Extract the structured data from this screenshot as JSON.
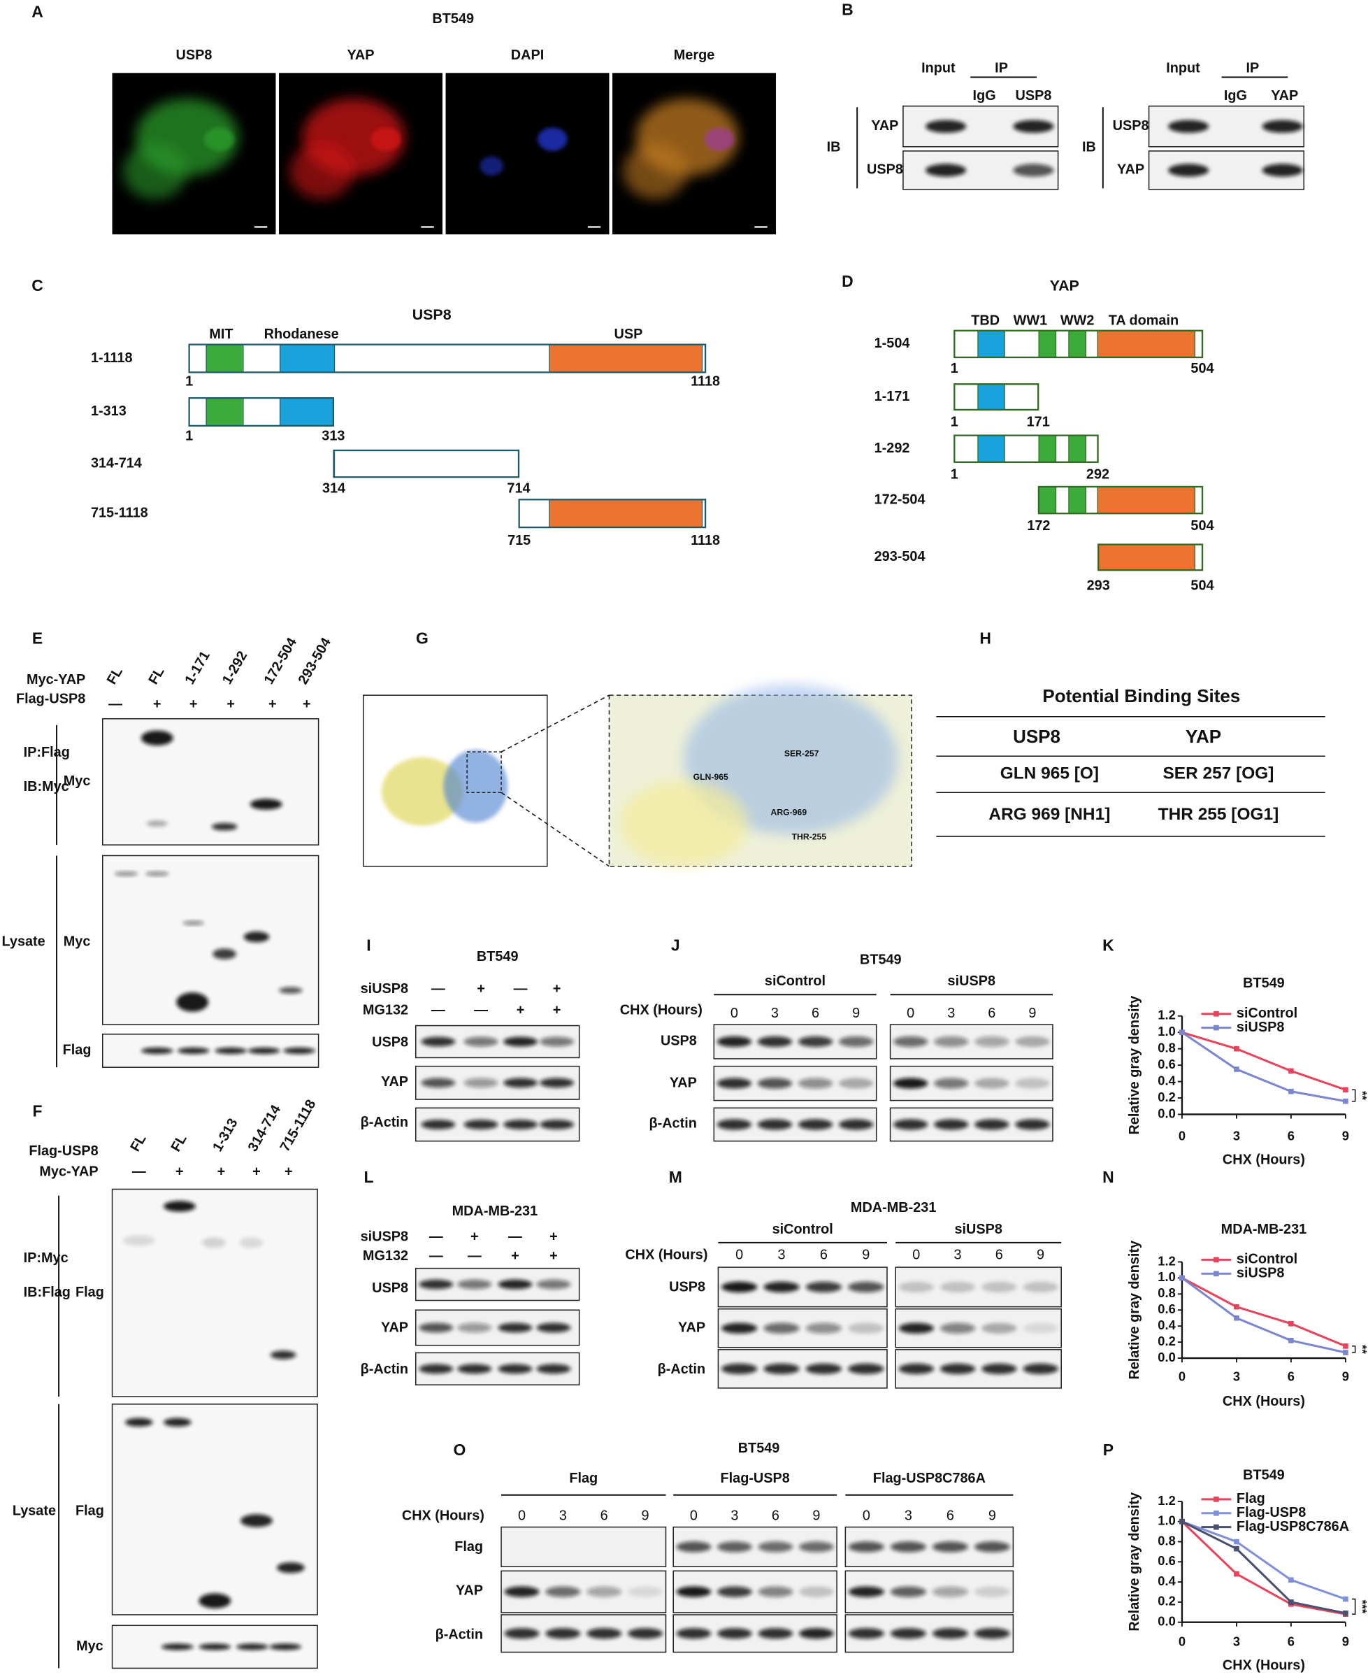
{
  "panels": {
    "A": {
      "letter": "A",
      "cell": "BT549",
      "channels": [
        "USP8",
        "YAP",
        "DAPI",
        "Merge"
      ]
    },
    "B": {
      "letter": "B",
      "blots": [
        {
          "input": "Input",
          "ip": "IP",
          "lanes": [
            "IgG",
            "USP8"
          ],
          "ib": "IB",
          "rows": [
            "YAP",
            "USP8"
          ]
        },
        {
          "input": "Input",
          "ip": "IP",
          "lanes": [
            "IgG",
            "YAP"
          ],
          "ib": "IB",
          "rows": [
            "USP8",
            "YAP"
          ]
        }
      ]
    },
    "C": {
      "letter": "C",
      "title": "USP8",
      "domains": [
        "MIT",
        "Rhodanese",
        "USP"
      ],
      "constructs": [
        {
          "label": "1-1118",
          "start": 1,
          "end": 1118
        },
        {
          "label": "1-313",
          "start": 1,
          "end": 313
        },
        {
          "label": "314-714",
          "start": 314,
          "end": 714
        },
        {
          "label": "715-1118",
          "start": 715,
          "end": 1118
        }
      ]
    },
    "D": {
      "letter": "D",
      "title": "YAP",
      "domains": [
        "TBD",
        "WW1",
        "WW2",
        "TA domain"
      ],
      "constructs": [
        {
          "label": "1-504",
          "start": 1,
          "end": 504
        },
        {
          "label": "1-171",
          "start": 1,
          "end": 171
        },
        {
          "label": "1-292",
          "start": 1,
          "end": 292
        },
        {
          "label": "172-504",
          "start": 172,
          "end": 504
        },
        {
          "label": "293-504",
          "start": 293,
          "end": 504
        }
      ]
    },
    "E": {
      "letter": "E",
      "row1": "Myc-YAP",
      "row2": "Flag-USP8",
      "lanes": [
        "FL",
        "FL",
        "1-171",
        "1-292",
        "172-504",
        "293-504"
      ],
      "signs": [
        "—",
        "+",
        "+",
        "+",
        "+",
        "+"
      ],
      "ip": "IP:Flag",
      "ib": "IB:Myc",
      "ip_blot": "Myc",
      "lysate": "Lysate",
      "lysate_blots": [
        "Myc",
        "Flag"
      ]
    },
    "F": {
      "letter": "F",
      "row1": "Flag-USP8",
      "row2": "Myc-YAP",
      "lanes": [
        "FL",
        "FL",
        "1-313",
        "314-714",
        "715-1118"
      ],
      "signs": [
        "—",
        "+",
        "+",
        "+",
        "+"
      ],
      "ip": "IP:Myc",
      "ib": "IB:Flag",
      "ip_blot": "Flag",
      "lysate": "Lysate",
      "lysate_blots": [
        "Flag",
        "Myc"
      ]
    },
    "G": {
      "letter": "G",
      "residues": [
        "GLN-965",
        "SER-257",
        "ARG-969",
        "THR-255"
      ]
    },
    "H": {
      "letter": "H",
      "title": "Potential Binding Sites",
      "header": [
        "USP8",
        "YAP"
      ],
      "rows": [
        [
          "GLN 965 [O]",
          "SER 257 [OG]"
        ],
        [
          "ARG 969 [NH1]",
          "THR 255 [OG1]"
        ]
      ]
    },
    "I": {
      "letter": "I",
      "cell": "BT549",
      "rows": [
        "siUSP8",
        "MG132"
      ],
      "signs": [
        [
          "—",
          "+",
          "—",
          "+"
        ],
        [
          "—",
          "—",
          "+",
          "+"
        ]
      ],
      "blots": [
        "USP8",
        "YAP",
        "β-Actin"
      ]
    },
    "L": {
      "letter": "L",
      "cell": "MDA-MB-231",
      "rows": [
        "siUSP8",
        "MG132"
      ],
      "signs": [
        [
          "—",
          "+",
          "—",
          "+"
        ],
        [
          "—",
          "—",
          "+",
          "+"
        ]
      ],
      "blots": [
        "USP8",
        "YAP",
        "β-Actin"
      ]
    },
    "J": {
      "letter": "J",
      "cell": "BT549",
      "groups": [
        "siControl",
        "siUSP8"
      ],
      "chx": "CHX (Hours)",
      "times": [
        0,
        3,
        6,
        9
      ],
      "blots": [
        "USP8",
        "YAP",
        "β-Actin"
      ]
    },
    "M": {
      "letter": "M",
      "cell": "MDA-MB-231",
      "groups": [
        "siControl",
        "siUSP8"
      ],
      "chx": "CHX (Hours)",
      "times": [
        0,
        3,
        6,
        9
      ],
      "blots": [
        "USP8",
        "YAP",
        "β-Actin"
      ]
    },
    "O": {
      "letter": "O",
      "cell": "BT549",
      "groups": [
        "Flag",
        "Flag-USP8",
        "Flag-USP8C786A"
      ],
      "chx": "CHX (Hours)",
      "times": [
        0,
        3,
        6,
        9
      ],
      "blots": [
        "Flag",
        "YAP",
        "β-Actin"
      ]
    }
  },
  "chart_data": [
    {
      "type": "line",
      "label": "K",
      "title": "BT549",
      "x_label": "CHX (Hours)",
      "y_label": "Relative gray density",
      "x": [
        0,
        3,
        6,
        9
      ],
      "xlim": [
        0,
        9
      ],
      "xticks": [
        0,
        3,
        6,
        9
      ],
      "ylim": [
        0,
        1.2
      ],
      "yticks": [
        {
          "value": 0,
          "label": "0.0"
        },
        0.2,
        0.4,
        0.6,
        0.8,
        {
          "value": 1,
          "label": "1.0"
        },
        1.2
      ],
      "legend": "upper right",
      "annotation": "**",
      "series": [
        {
          "name": "siControl",
          "color": "#e8435a",
          "values": [
            1.0,
            0.8,
            0.53,
            0.3
          ]
        },
        {
          "name": "siUSP8",
          "color": "#7b86d0",
          "values": [
            1.0,
            0.55,
            0.28,
            0.16
          ]
        }
      ]
    },
    {
      "type": "line",
      "label": "N",
      "title": "MDA-MB-231",
      "x_label": "CHX (Hours)",
      "y_label": "Relative gray density",
      "x": [
        0,
        3,
        6,
        9
      ],
      "xlim": [
        0,
        9
      ],
      "xticks": [
        0,
        3,
        6,
        9
      ],
      "ylim": [
        0,
        1.2
      ],
      "yticks": [
        {
          "value": 0,
          "label": "0.0"
        },
        0.2,
        0.4,
        0.6,
        0.8,
        {
          "value": 1,
          "label": "1.0"
        },
        1.2
      ],
      "legend": "upper right",
      "annotation": "**",
      "series": [
        {
          "name": "siControl",
          "color": "#e8435a",
          "values": [
            1.0,
            0.64,
            0.43,
            0.15
          ]
        },
        {
          "name": "siUSP8",
          "color": "#7b86d0",
          "values": [
            1.0,
            0.5,
            0.22,
            0.07
          ]
        }
      ]
    },
    {
      "type": "line",
      "label": "P",
      "title": "BT549",
      "x_label": "CHX (Hours)",
      "y_label": "Relative gray density",
      "x": [
        0,
        3,
        6,
        9
      ],
      "xlim": [
        0,
        9
      ],
      "xticks": [
        0,
        3,
        6,
        9
      ],
      "ylim": [
        0,
        1.2
      ],
      "yticks": [
        {
          "value": 0,
          "label": "0.0"
        },
        0.2,
        0.4,
        0.6,
        0.8,
        {
          "value": 1,
          "label": "1.0"
        },
        1.2
      ],
      "legend": "upper right",
      "annotation": "***",
      "series": [
        {
          "name": "Flag",
          "color": "#e8435a",
          "values": [
            1.0,
            0.48,
            0.18,
            0.08
          ]
        },
        {
          "name": "Flag-USP8",
          "color": "#8090d8",
          "values": [
            1.0,
            0.8,
            0.42,
            0.23
          ]
        },
        {
          "name": "Flag-USP8C786A",
          "color": "#4a5070",
          "values": [
            1.0,
            0.73,
            0.2,
            0.09
          ]
        }
      ]
    }
  ]
}
